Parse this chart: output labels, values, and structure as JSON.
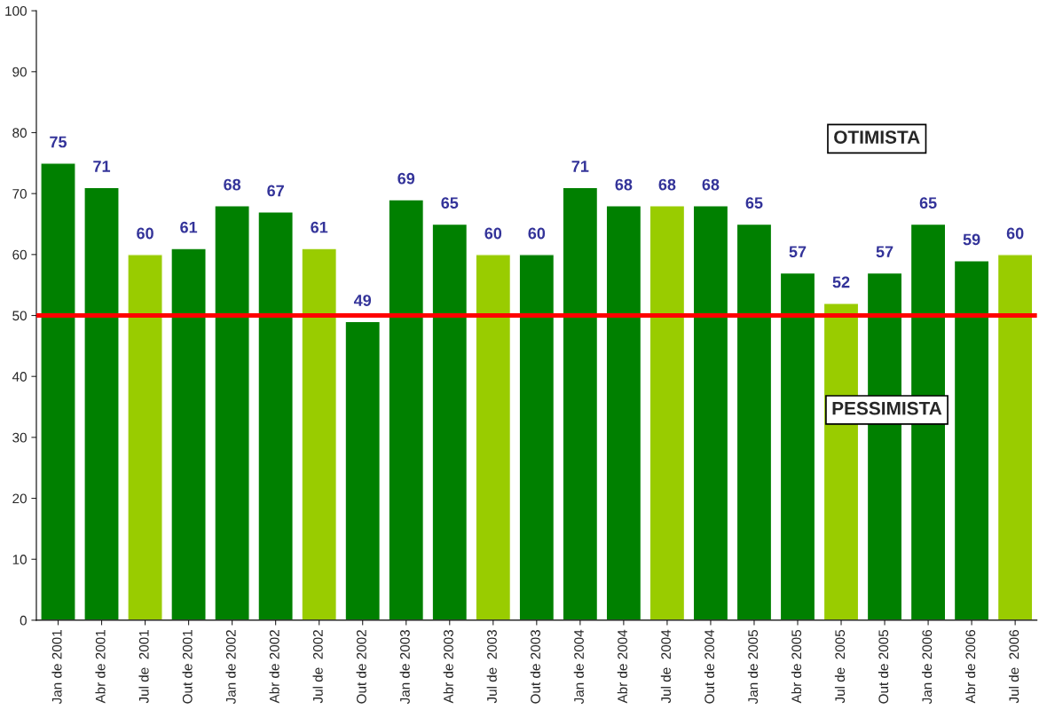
{
  "chart_data": {
    "type": "bar",
    "categories": [
      "Jan de 2001",
      "Abr de 2001",
      "Jul de  2001",
      "Out de 2001",
      "Jan de 2002",
      "Abr de 2002",
      "Jul de  2002",
      "Out de 2002",
      "Jan de 2003",
      "Abr de 2003",
      "Jul de  2003",
      "Out de 2003",
      "Jan de 2004",
      "Abr de 2004",
      "Jul de  2004",
      "Out de 2004",
      "Jan de 2005",
      "Abr de 2005",
      "Jul de  2005",
      "Out de 2005",
      "Jan de 2006",
      "Abr de 2006",
      "Jul de  2006"
    ],
    "values": [
      75,
      71,
      60,
      61,
      68,
      67,
      61,
      49,
      69,
      65,
      60,
      60,
      71,
      68,
      68,
      68,
      65,
      57,
      52,
      57,
      65,
      59,
      60
    ],
    "colors": [
      "#008000",
      "#008000",
      "#99cc00",
      "#008000",
      "#008000",
      "#008000",
      "#99cc00",
      "#008000",
      "#008000",
      "#008000",
      "#99cc00",
      "#008000",
      "#008000",
      "#008000",
      "#99cc00",
      "#008000",
      "#008000",
      "#008000",
      "#99cc00",
      "#008000",
      "#008000",
      "#008000",
      "#99cc00"
    ],
    "data_labels": true,
    "ylim": [
      0,
      100
    ],
    "yticks": [
      0,
      10,
      20,
      30,
      40,
      50,
      60,
      70,
      80,
      90,
      100
    ],
    "grid": false,
    "ref_lines": [
      {
        "axis": "y",
        "value": 50,
        "color": "#ff0000"
      }
    ],
    "annotations": [
      "OTIMISTA",
      "PESSIMISTA"
    ]
  }
}
